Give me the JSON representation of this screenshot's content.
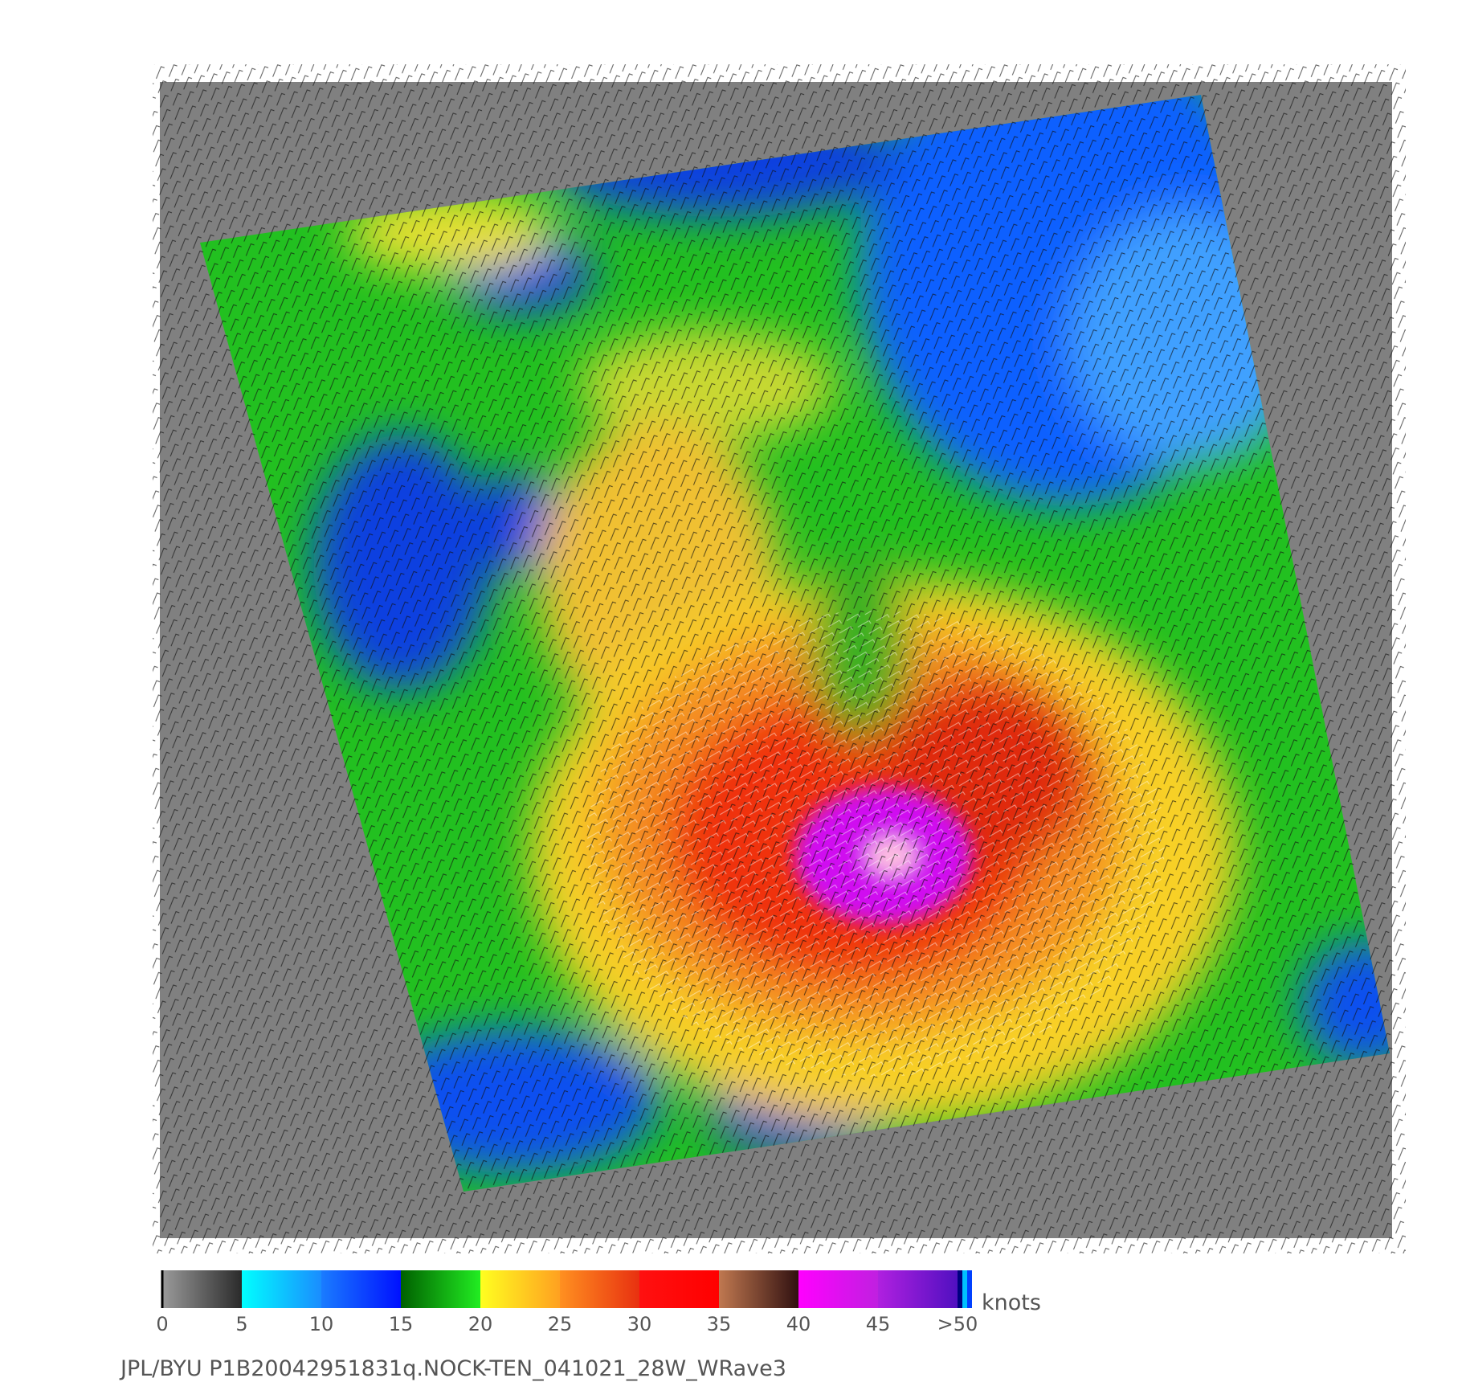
{
  "colorbar": {
    "range": [
      0,
      50
    ],
    "ticks": [
      0,
      5,
      10,
      15,
      20,
      25,
      30,
      35,
      40,
      45,
      {
        "value": 50,
        "label": ">50"
      }
    ],
    "unit": "knots",
    "segments": [
      {
        "from": "#9a9a9a",
        "to": "#2a2a2a"
      },
      {
        "from": "#00ffff",
        "to": "#1a8cff"
      },
      {
        "from": "#1a7cff",
        "to": "#0010ff"
      },
      {
        "from": "#006000",
        "to": "#22ee22"
      },
      {
        "from": "#ffff20",
        "to": "#ffa020"
      },
      {
        "from": "#ff9020",
        "to": "#e83010"
      },
      {
        "from": "#ff1010",
        "to": "#ff0000"
      },
      {
        "from": "#c07850",
        "to": "#301010"
      },
      {
        "from": "#ff00ff",
        "to": "#c020e0"
      },
      {
        "from": "#b020e0",
        "to": "#5010c0"
      }
    ]
  },
  "caption": "JPL/BYU  P1B20042951831q.NOCK-TEN_041021_28W_WRave3"
}
